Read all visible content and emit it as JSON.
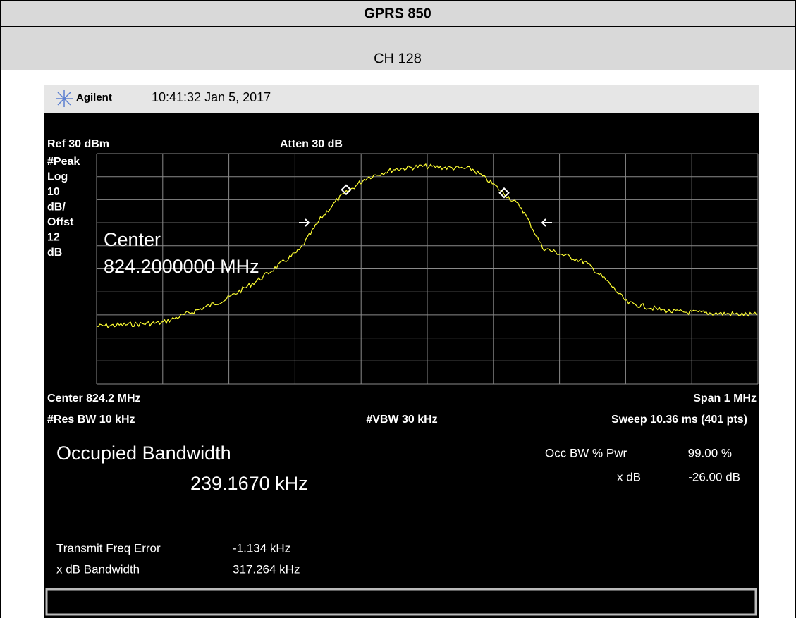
{
  "header": {
    "title": "GPRS 850",
    "channel": "CH 128"
  },
  "screen": {
    "brand": "Agilent",
    "timestamp": "10:41:32  Jan 5, 2017",
    "ref": "Ref 30 dBm",
    "atten": "Atten 30 dB",
    "scale_labels": [
      "#Peak",
      "Log",
      "10",
      "dB/",
      "Offst",
      "12",
      "dB"
    ],
    "overlay": [
      "Center",
      "824.2000000 MHz"
    ],
    "center": "Center 824.2 MHz",
    "span": "Span 1 MHz",
    "res_bw": "#Res BW 10 kHz",
    "vbw": "#VBW 30 kHz",
    "sweep": "Sweep 10.36 ms (401 pts)",
    "measurement": "Occupied Bandwidth",
    "result": "239.1670 kHz",
    "occ_label": "Occ BW % Pwr",
    "occ_value": "99.00 %",
    "xdb_label": "x dB",
    "xdb_value": "-26.00 dB",
    "freq_error_label": "Transmit Freq Error",
    "freq_error_value": "-1.134 kHz",
    "xdb_bw_label": "x dB Bandwidth",
    "xdb_bw_value": "317.264 kHz"
  }
}
